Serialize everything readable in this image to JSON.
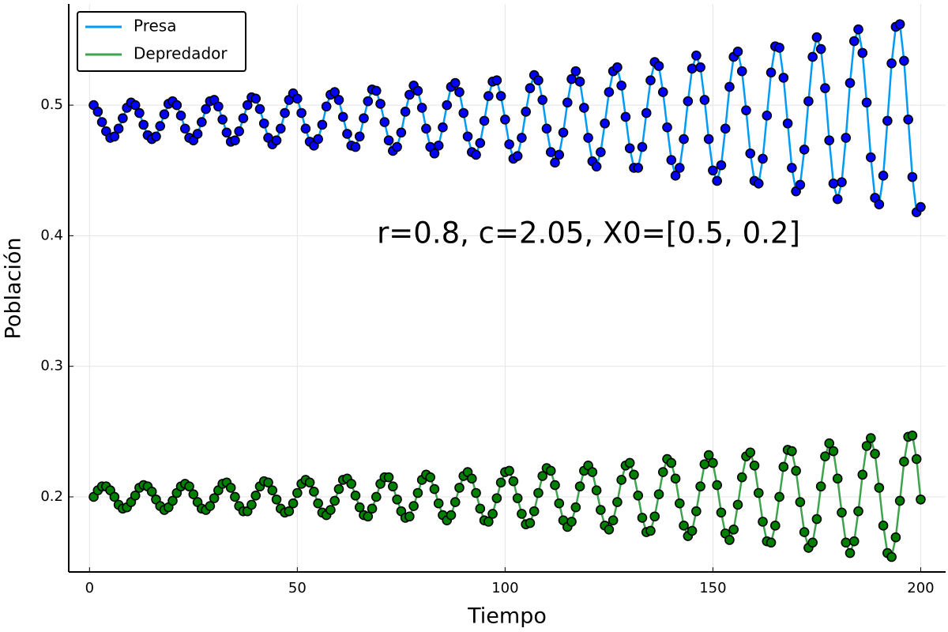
{
  "chart_data": {
    "type": "line",
    "xlabel": "Tiempo",
    "ylabel": "Población",
    "annotation": "r=0.8, c=2.05, X0=[0.5, 0.2]",
    "x": [
      1,
      2,
      3,
      4,
      5,
      6,
      7,
      8,
      9,
      10,
      11,
      12,
      13,
      14,
      15,
      16,
      17,
      18,
      19,
      20,
      21,
      22,
      23,
      24,
      25,
      26,
      27,
      28,
      29,
      30,
      31,
      32,
      33,
      34,
      35,
      36,
      37,
      38,
      39,
      40,
      41,
      42,
      43,
      44,
      45,
      46,
      47,
      48,
      49,
      50,
      51,
      52,
      53,
      54,
      55,
      56,
      57,
      58,
      59,
      60,
      61,
      62,
      63,
      64,
      65,
      66,
      67,
      68,
      69,
      70,
      71,
      72,
      73,
      74,
      75,
      76,
      77,
      78,
      79,
      80,
      81,
      82,
      83,
      84,
      85,
      86,
      87,
      88,
      89,
      90,
      91,
      92,
      93,
      94,
      95,
      96,
      97,
      98,
      99,
      100,
      101,
      102,
      103,
      104,
      105,
      106,
      107,
      108,
      109,
      110,
      111,
      112,
      113,
      114,
      115,
      116,
      117,
      118,
      119,
      120,
      121,
      122,
      123,
      124,
      125,
      126,
      127,
      128,
      129,
      130,
      131,
      132,
      133,
      134,
      135,
      136,
      137,
      138,
      139,
      140,
      141,
      142,
      143,
      144,
      145,
      146,
      147,
      148,
      149,
      150,
      151,
      152,
      153,
      154,
      155,
      156,
      157,
      158,
      159,
      160,
      161,
      162,
      163,
      164,
      165,
      166,
      167,
      168,
      169,
      170,
      171,
      172,
      173,
      174,
      175,
      176,
      177,
      178,
      179,
      180,
      181,
      182,
      183,
      184,
      185,
      186,
      187,
      188,
      189,
      190,
      191,
      192,
      193,
      194,
      195,
      196,
      197,
      198,
      199,
      200
    ],
    "series": [
      {
        "name": "Presa",
        "color": "#009af9",
        "marker_color": "#0000ff",
        "values": [
          0.5,
          0.495,
          0.487,
          0.48,
          0.475,
          0.476,
          0.482,
          0.49,
          0.498,
          0.502,
          0.5,
          0.494,
          0.485,
          0.477,
          0.474,
          0.476,
          0.484,
          0.493,
          0.501,
          0.503,
          0.5,
          0.492,
          0.482,
          0.475,
          0.473,
          0.478,
          0.487,
          0.497,
          0.503,
          0.504,
          0.499,
          0.489,
          0.479,
          0.472,
          0.473,
          0.48,
          0.49,
          0.5,
          0.506,
          0.505,
          0.497,
          0.486,
          0.475,
          0.47,
          0.473,
          0.482,
          0.494,
          0.504,
          0.509,
          0.505,
          0.494,
          0.482,
          0.472,
          0.469,
          0.474,
          0.485,
          0.499,
          0.508,
          0.51,
          0.504,
          0.491,
          0.478,
          0.469,
          0.468,
          0.476,
          0.49,
          0.503,
          0.512,
          0.511,
          0.501,
          0.487,
          0.473,
          0.465,
          0.468,
          0.479,
          0.495,
          0.508,
          0.515,
          0.511,
          0.498,
          0.482,
          0.468,
          0.463,
          0.469,
          0.483,
          0.5,
          0.514,
          0.517,
          0.51,
          0.494,
          0.476,
          0.464,
          0.462,
          0.471,
          0.488,
          0.507,
          0.518,
          0.519,
          0.507,
          0.489,
          0.47,
          0.459,
          0.461,
          0.475,
          0.495,
          0.513,
          0.523,
          0.519,
          0.504,
          0.482,
          0.464,
          0.456,
          0.462,
          0.479,
          0.502,
          0.52,
          0.526,
          0.518,
          0.498,
          0.475,
          0.457,
          0.453,
          0.464,
          0.486,
          0.51,
          0.526,
          0.529,
          0.515,
          0.491,
          0.467,
          0.452,
          0.452,
          0.468,
          0.494,
          0.519,
          0.533,
          0.53,
          0.51,
          0.483,
          0.458,
          0.446,
          0.452,
          0.474,
          0.503,
          0.528,
          0.538,
          0.529,
          0.504,
          0.474,
          0.45,
          0.442,
          0.454,
          0.482,
          0.514,
          0.537,
          0.541,
          0.526,
          0.496,
          0.463,
          0.442,
          0.44,
          0.459,
          0.492,
          0.525,
          0.545,
          0.544,
          0.521,
          0.486,
          0.452,
          0.434,
          0.439,
          0.466,
          0.503,
          0.537,
          0.552,
          0.543,
          0.513,
          0.473,
          0.44,
          0.428,
          0.441,
          0.475,
          0.517,
          0.549,
          0.558,
          0.54,
          0.502,
          0.46,
          0.429,
          0.424,
          0.446,
          0.488,
          0.532,
          0.56,
          0.562,
          0.534,
          0.489,
          0.445,
          0.418,
          0.422
        ]
      },
      {
        "name": "Depredador",
        "color": "#3da44d",
        "marker_color": "#008000",
        "values": [
          0.2,
          0.205,
          0.208,
          0.208,
          0.205,
          0.2,
          0.194,
          0.191,
          0.192,
          0.196,
          0.201,
          0.207,
          0.209,
          0.208,
          0.204,
          0.198,
          0.193,
          0.19,
          0.192,
          0.197,
          0.203,
          0.208,
          0.21,
          0.208,
          0.202,
          0.196,
          0.191,
          0.19,
          0.193,
          0.199,
          0.205,
          0.21,
          0.211,
          0.207,
          0.2,
          0.193,
          0.189,
          0.189,
          0.194,
          0.201,
          0.208,
          0.212,
          0.211,
          0.205,
          0.198,
          0.191,
          0.188,
          0.189,
          0.195,
          0.203,
          0.21,
          0.213,
          0.211,
          0.204,
          0.195,
          0.188,
          0.186,
          0.19,
          0.197,
          0.206,
          0.213,
          0.214,
          0.21,
          0.201,
          0.192,
          0.186,
          0.185,
          0.191,
          0.2,
          0.21,
          0.215,
          0.215,
          0.208,
          0.198,
          0.189,
          0.184,
          0.185,
          0.193,
          0.203,
          0.213,
          0.217,
          0.215,
          0.206,
          0.195,
          0.186,
          0.182,
          0.186,
          0.196,
          0.207,
          0.216,
          0.219,
          0.214,
          0.203,
          0.191,
          0.182,
          0.181,
          0.187,
          0.199,
          0.211,
          0.219,
          0.22,
          0.212,
          0.199,
          0.187,
          0.179,
          0.18,
          0.189,
          0.203,
          0.216,
          0.222,
          0.22,
          0.209,
          0.195,
          0.182,
          0.177,
          0.181,
          0.192,
          0.208,
          0.22,
          0.224,
          0.219,
          0.205,
          0.19,
          0.178,
          0.175,
          0.182,
          0.196,
          0.213,
          0.224,
          0.226,
          0.217,
          0.201,
          0.184,
          0.173,
          0.174,
          0.185,
          0.202,
          0.219,
          0.229,
          0.226,
          0.214,
          0.195,
          0.178,
          0.17,
          0.174,
          0.189,
          0.208,
          0.225,
          0.232,
          0.226,
          0.209,
          0.188,
          0.172,
          0.167,
          0.175,
          0.194,
          0.215,
          0.231,
          0.234,
          0.224,
          0.203,
          0.181,
          0.166,
          0.165,
          0.178,
          0.2,
          0.223,
          0.236,
          0.235,
          0.22,
          0.196,
          0.173,
          0.161,
          0.165,
          0.183,
          0.208,
          0.231,
          0.241,
          0.235,
          0.214,
          0.188,
          0.165,
          0.157,
          0.166,
          0.189,
          0.217,
          0.239,
          0.245,
          0.233,
          0.207,
          0.178,
          0.157,
          0.154,
          0.169,
          0.197,
          0.227,
          0.246,
          0.247,
          0.229,
          0.198
        ]
      }
    ],
    "xlim": [
      -5,
      206
    ],
    "ylim": [
      0.1425,
      0.5775
    ],
    "xticks": [
      0,
      50,
      100,
      150,
      200
    ],
    "yticks": [
      0.2,
      0.3,
      0.4,
      0.5
    ],
    "grid": true,
    "legend": "top-left"
  }
}
